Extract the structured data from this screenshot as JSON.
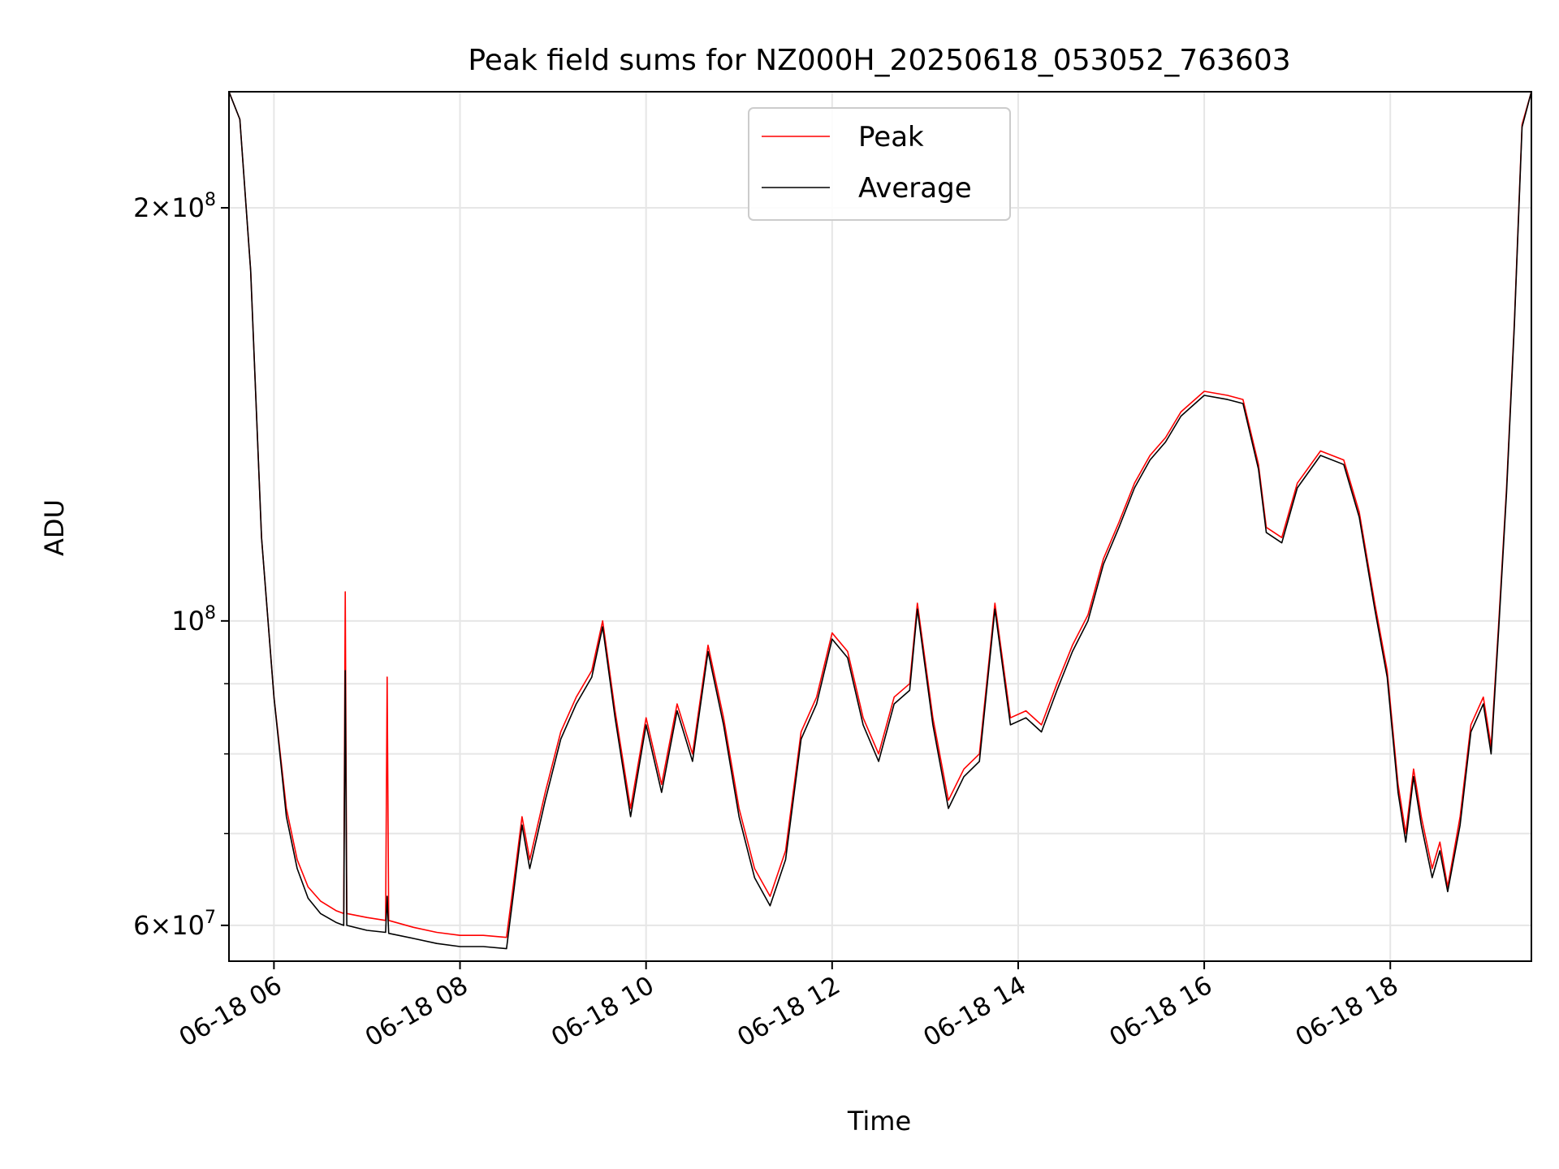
{
  "chart_data": {
    "type": "line",
    "title": "Peak field sums for NZ000H_20250618_053052_763603",
    "xlabel": "Time",
    "ylabel": "ADU",
    "y_scale": "log",
    "xlim": [
      "2025-06-18 05:31",
      "2025-06-18 19:31"
    ],
    "ylim": [
      56500000,
      243000000
    ],
    "grid": true,
    "legend_position": "upper center",
    "x_ticks": [
      {
        "t": "2025-06-18 06:00",
        "label": "06-18 06"
      },
      {
        "t": "2025-06-18 08:00",
        "label": "06-18 08"
      },
      {
        "t": "2025-06-18 10:00",
        "label": "06-18 10"
      },
      {
        "t": "2025-06-18 12:00",
        "label": "06-18 12"
      },
      {
        "t": "2025-06-18 14:00",
        "label": "06-18 14"
      },
      {
        "t": "2025-06-18 16:00",
        "label": "06-18 16"
      },
      {
        "t": "2025-06-18 18:00",
        "label": "06-18 18"
      }
    ],
    "y_major_ticks": [
      {
        "value": 60000000,
        "mantissa": "6",
        "base": "10",
        "exp": "7"
      },
      {
        "value": 100000000,
        "mantissa": "",
        "base": "10",
        "exp": "8"
      },
      {
        "value": 200000000,
        "mantissa": "2",
        "base": "10",
        "exp": "8"
      }
    ],
    "y_minor_ticks": [
      70000000,
      80000000,
      90000000
    ],
    "series": [
      {
        "name": "Peak",
        "color": "#ff0000",
        "points": [
          [
            "2025-06-18 05:31",
            243000000
          ],
          [
            "2025-06-18 05:38",
            232000000
          ],
          [
            "2025-06-18 05:45",
            180000000
          ],
          [
            "2025-06-18 05:52",
            115000000
          ],
          [
            "2025-06-18 06:00",
            88000000
          ],
          [
            "2025-06-18 06:08",
            73000000
          ],
          [
            "2025-06-18 06:15",
            67000000
          ],
          [
            "2025-06-18 06:22",
            64000000
          ],
          [
            "2025-06-18 06:30",
            62500000
          ],
          [
            "2025-06-18 06:40",
            61500000
          ],
          [
            "2025-06-18 06:45",
            61200000
          ],
          [
            "2025-06-18 06:46",
            105000000
          ],
          [
            "2025-06-18 06:47",
            61200000
          ],
          [
            "2025-06-18 07:00",
            60800000
          ],
          [
            "2025-06-18 07:12",
            60500000
          ],
          [
            "2025-06-18 07:13",
            91000000
          ],
          [
            "2025-06-18 07:14",
            60500000
          ],
          [
            "2025-06-18 07:30",
            59800000
          ],
          [
            "2025-06-18 07:45",
            59300000
          ],
          [
            "2025-06-18 08:00",
            59000000
          ],
          [
            "2025-06-18 08:15",
            59000000
          ],
          [
            "2025-06-18 08:30",
            58800000
          ],
          [
            "2025-06-18 08:35",
            65000000
          ],
          [
            "2025-06-18 08:40",
            72000000
          ],
          [
            "2025-06-18 08:45",
            67000000
          ],
          [
            "2025-06-18 08:55",
            75000000
          ],
          [
            "2025-06-18 09:05",
            83000000
          ],
          [
            "2025-06-18 09:15",
            88000000
          ],
          [
            "2025-06-18 09:25",
            92000000
          ],
          [
            "2025-06-18 09:32",
            100000000
          ],
          [
            "2025-06-18 09:40",
            86000000
          ],
          [
            "2025-06-18 09:50",
            73000000
          ],
          [
            "2025-06-18 10:00",
            85000000
          ],
          [
            "2025-06-18 10:10",
            76000000
          ],
          [
            "2025-06-18 10:20",
            87000000
          ],
          [
            "2025-06-18 10:30",
            80000000
          ],
          [
            "2025-06-18 10:40",
            96000000
          ],
          [
            "2025-06-18 10:50",
            85000000
          ],
          [
            "2025-06-18 11:00",
            73000000
          ],
          [
            "2025-06-18 11:10",
            66000000
          ],
          [
            "2025-06-18 11:20",
            63000000
          ],
          [
            "2025-06-18 11:30",
            68000000
          ],
          [
            "2025-06-18 11:40",
            83000000
          ],
          [
            "2025-06-18 11:50",
            88000000
          ],
          [
            "2025-06-18 12:00",
            98000000
          ],
          [
            "2025-06-18 12:10",
            95000000
          ],
          [
            "2025-06-18 12:20",
            85000000
          ],
          [
            "2025-06-18 12:30",
            80000000
          ],
          [
            "2025-06-18 12:40",
            88000000
          ],
          [
            "2025-06-18 12:50",
            90000000
          ],
          [
            "2025-06-18 12:55",
            103000000
          ],
          [
            "2025-06-18 13:05",
            85000000
          ],
          [
            "2025-06-18 13:15",
            74000000
          ],
          [
            "2025-06-18 13:25",
            78000000
          ],
          [
            "2025-06-18 13:35",
            80000000
          ],
          [
            "2025-06-18 13:45",
            103000000
          ],
          [
            "2025-06-18 13:55",
            85000000
          ],
          [
            "2025-06-18 14:05",
            86000000
          ],
          [
            "2025-06-18 14:15",
            84000000
          ],
          [
            "2025-06-18 14:25",
            90000000
          ],
          [
            "2025-06-18 14:35",
            96000000
          ],
          [
            "2025-06-18 14:45",
            101000000
          ],
          [
            "2025-06-18 14:55",
            111000000
          ],
          [
            "2025-06-18 15:05",
            118000000
          ],
          [
            "2025-06-18 15:15",
            126000000
          ],
          [
            "2025-06-18 15:25",
            132000000
          ],
          [
            "2025-06-18 15:35",
            136000000
          ],
          [
            "2025-06-18 15:45",
            142000000
          ],
          [
            "2025-06-18 16:00",
            147000000
          ],
          [
            "2025-06-18 16:15",
            146000000
          ],
          [
            "2025-06-18 16:25",
            145000000
          ],
          [
            "2025-06-18 16:35",
            130000000
          ],
          [
            "2025-06-18 16:40",
            117000000
          ],
          [
            "2025-06-18 16:50",
            115000000
          ],
          [
            "2025-06-18 17:00",
            126000000
          ],
          [
            "2025-06-18 17:15",
            133000000
          ],
          [
            "2025-06-18 17:30",
            131000000
          ],
          [
            "2025-06-18 17:40",
            120000000
          ],
          [
            "2025-06-18 17:50",
            103000000
          ],
          [
            "2025-06-18 17:58",
            92000000
          ],
          [
            "2025-06-18 18:05",
            76000000
          ],
          [
            "2025-06-18 18:10",
            70000000
          ],
          [
            "2025-06-18 18:15",
            78000000
          ],
          [
            "2025-06-18 18:20",
            72000000
          ],
          [
            "2025-06-18 18:27",
            66000000
          ],
          [
            "2025-06-18 18:32",
            69000000
          ],
          [
            "2025-06-18 18:37",
            64000000
          ],
          [
            "2025-06-18 18:45",
            72000000
          ],
          [
            "2025-06-18 18:52",
            84000000
          ],
          [
            "2025-06-18 19:00",
            88000000
          ],
          [
            "2025-06-18 19:05",
            81000000
          ],
          [
            "2025-06-18 19:10",
            100000000
          ],
          [
            "2025-06-18 19:15",
            125000000
          ],
          [
            "2025-06-18 19:20",
            165000000
          ],
          [
            "2025-06-18 19:25",
            230000000
          ],
          [
            "2025-06-18 19:31",
            243000000
          ]
        ]
      },
      {
        "name": "Average",
        "color": "#000000",
        "points": [
          [
            "2025-06-18 05:31",
            243000000
          ],
          [
            "2025-06-18 05:38",
            232000000
          ],
          [
            "2025-06-18 05:45",
            180000000
          ],
          [
            "2025-06-18 05:52",
            115000000
          ],
          [
            "2025-06-18 06:00",
            88000000
          ],
          [
            "2025-06-18 06:08",
            72000000
          ],
          [
            "2025-06-18 06:15",
            66000000
          ],
          [
            "2025-06-18 06:22",
            62800000
          ],
          [
            "2025-06-18 06:30",
            61200000
          ],
          [
            "2025-06-18 06:40",
            60300000
          ],
          [
            "2025-06-18 06:45",
            60000000
          ],
          [
            "2025-06-18 06:46",
            92000000
          ],
          [
            "2025-06-18 06:47",
            60000000
          ],
          [
            "2025-06-18 07:00",
            59500000
          ],
          [
            "2025-06-18 07:12",
            59300000
          ],
          [
            "2025-06-18 07:13",
            63000000
          ],
          [
            "2025-06-18 07:14",
            59200000
          ],
          [
            "2025-06-18 07:30",
            58700000
          ],
          [
            "2025-06-18 07:45",
            58200000
          ],
          [
            "2025-06-18 08:00",
            57900000
          ],
          [
            "2025-06-18 08:15",
            57900000
          ],
          [
            "2025-06-18 08:30",
            57700000
          ],
          [
            "2025-06-18 08:35",
            64000000
          ],
          [
            "2025-06-18 08:40",
            71000000
          ],
          [
            "2025-06-18 08:45",
            66000000
          ],
          [
            "2025-06-18 08:55",
            74000000
          ],
          [
            "2025-06-18 09:05",
            82000000
          ],
          [
            "2025-06-18 09:15",
            87000000
          ],
          [
            "2025-06-18 09:25",
            91000000
          ],
          [
            "2025-06-18 09:32",
            99000000
          ],
          [
            "2025-06-18 09:40",
            85000000
          ],
          [
            "2025-06-18 09:50",
            72000000
          ],
          [
            "2025-06-18 10:00",
            84000000
          ],
          [
            "2025-06-18 10:10",
            75000000
          ],
          [
            "2025-06-18 10:20",
            86000000
          ],
          [
            "2025-06-18 10:30",
            79000000
          ],
          [
            "2025-06-18 10:40",
            95000000
          ],
          [
            "2025-06-18 10:50",
            84000000
          ],
          [
            "2025-06-18 11:00",
            72000000
          ],
          [
            "2025-06-18 11:10",
            65000000
          ],
          [
            "2025-06-18 11:20",
            62000000
          ],
          [
            "2025-06-18 11:30",
            67000000
          ],
          [
            "2025-06-18 11:40",
            82000000
          ],
          [
            "2025-06-18 11:50",
            87000000
          ],
          [
            "2025-06-18 12:00",
            97000000
          ],
          [
            "2025-06-18 12:10",
            94000000
          ],
          [
            "2025-06-18 12:20",
            84000000
          ],
          [
            "2025-06-18 12:30",
            79000000
          ],
          [
            "2025-06-18 12:40",
            87000000
          ],
          [
            "2025-06-18 12:50",
            89000000
          ],
          [
            "2025-06-18 12:55",
            102000000
          ],
          [
            "2025-06-18 13:05",
            84000000
          ],
          [
            "2025-06-18 13:15",
            73000000
          ],
          [
            "2025-06-18 13:25",
            77000000
          ],
          [
            "2025-06-18 13:35",
            79000000
          ],
          [
            "2025-06-18 13:45",
            102000000
          ],
          [
            "2025-06-18 13:55",
            84000000
          ],
          [
            "2025-06-18 14:05",
            85000000
          ],
          [
            "2025-06-18 14:15",
            83000000
          ],
          [
            "2025-06-18 14:25",
            89000000
          ],
          [
            "2025-06-18 14:35",
            95000000
          ],
          [
            "2025-06-18 14:45",
            100000000
          ],
          [
            "2025-06-18 14:55",
            110000000
          ],
          [
            "2025-06-18 15:05",
            117000000
          ],
          [
            "2025-06-18 15:15",
            125000000
          ],
          [
            "2025-06-18 15:25",
            131000000
          ],
          [
            "2025-06-18 15:35",
            135000000
          ],
          [
            "2025-06-18 15:45",
            141000000
          ],
          [
            "2025-06-18 16:00",
            146000000
          ],
          [
            "2025-06-18 16:15",
            145000000
          ],
          [
            "2025-06-18 16:25",
            144000000
          ],
          [
            "2025-06-18 16:35",
            129000000
          ],
          [
            "2025-06-18 16:40",
            116000000
          ],
          [
            "2025-06-18 16:50",
            114000000
          ],
          [
            "2025-06-18 17:00",
            125000000
          ],
          [
            "2025-06-18 17:15",
            132000000
          ],
          [
            "2025-06-18 17:30",
            130000000
          ],
          [
            "2025-06-18 17:40",
            119000000
          ],
          [
            "2025-06-18 17:50",
            102000000
          ],
          [
            "2025-06-18 17:58",
            91000000
          ],
          [
            "2025-06-18 18:05",
            75000000
          ],
          [
            "2025-06-18 18:10",
            69000000
          ],
          [
            "2025-06-18 18:15",
            77000000
          ],
          [
            "2025-06-18 18:20",
            71000000
          ],
          [
            "2025-06-18 18:27",
            65000000
          ],
          [
            "2025-06-18 18:32",
            68000000
          ],
          [
            "2025-06-18 18:37",
            63500000
          ],
          [
            "2025-06-18 18:45",
            71000000
          ],
          [
            "2025-06-18 18:52",
            83000000
          ],
          [
            "2025-06-18 19:00",
            87000000
          ],
          [
            "2025-06-18 19:05",
            80000000
          ],
          [
            "2025-06-18 19:10",
            99000000
          ],
          [
            "2025-06-18 19:15",
            124000000
          ],
          [
            "2025-06-18 19:20",
            164000000
          ],
          [
            "2025-06-18 19:25",
            229000000
          ],
          [
            "2025-06-18 19:31",
            243000000
          ]
        ]
      }
    ]
  }
}
